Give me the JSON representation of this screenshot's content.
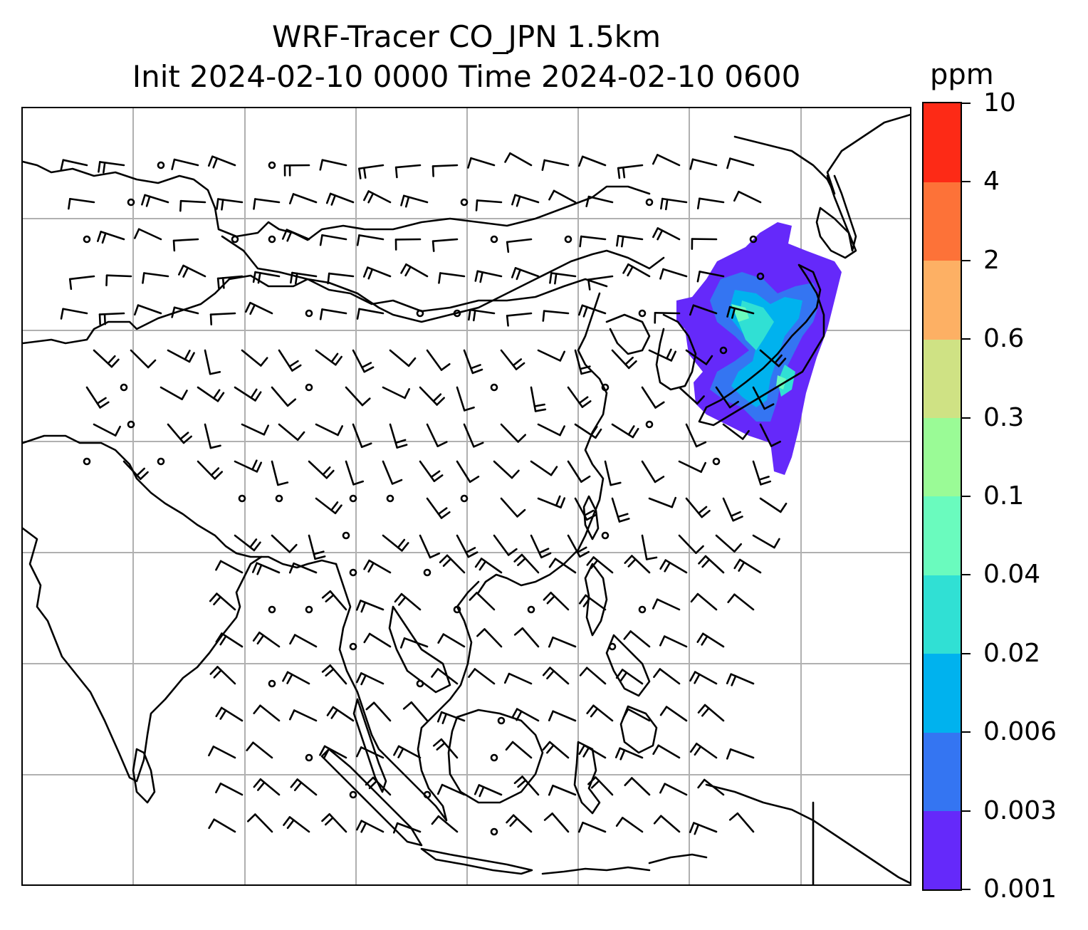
{
  "title": {
    "line1": "WRF-Tracer CO_JPN 1.5km",
    "line2": "Init 2024-02-10 0000 Time 2024-02-10 0600"
  },
  "colorbar": {
    "unit": "ppm",
    "levels": [
      "0.001",
      "0.003",
      "0.006",
      "0.02",
      "0.04",
      "0.1",
      "0.3",
      "0.6",
      "2",
      "4",
      "10"
    ],
    "colors": [
      "#6529fa",
      "#3475f2",
      "#00b2ee",
      "#30e0d4",
      "#6afbbe",
      "#9afb96",
      "#cfe284",
      "#fdb064",
      "#fd7238",
      "#fd2a16"
    ]
  },
  "map": {
    "coastline_color": "#000000",
    "gridline_color": "#b0b0b0",
    "barb_color": "#000000",
    "tracer_plume_colors": [
      "#6529fa",
      "#3475f2",
      "#00b2ee",
      "#30e0d4",
      "#6afbbe"
    ]
  }
}
